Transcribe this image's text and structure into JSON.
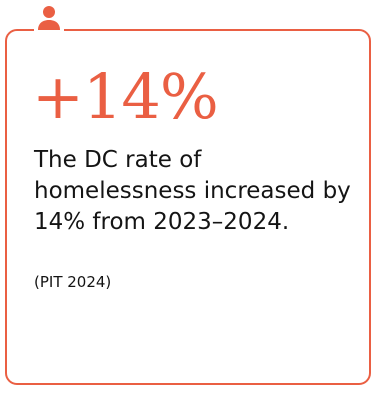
{
  "card": {
    "stat_value": "+14%",
    "description": "The DC rate of homelessness increased by 14% from 2023–2024.",
    "source": "(PIT 2024)",
    "icon": "person-icon"
  },
  "colors": {
    "accent": "#ea5f43",
    "text": "#141414",
    "background": "#ffffff"
  }
}
